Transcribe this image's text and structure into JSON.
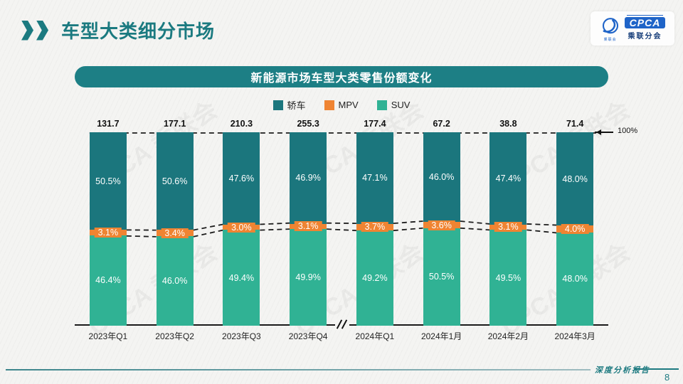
{
  "header": {
    "title": "车型大类细分市场",
    "logo": {
      "acronym": "CPCA",
      "org": "乘联分会",
      "emblem_label": "乘联会"
    }
  },
  "watermark": {
    "text": "CPCA 乘联会"
  },
  "chart_data": {
    "type": "bar",
    "stacked": true,
    "stack_order": "top-to-bottom",
    "unit": "%",
    "title": "新能源市场车型大类零售份额变化",
    "categories": [
      "2023年Q1",
      "2023年Q2",
      "2023年Q3",
      "2023年Q4",
      "2024年Q1",
      "2024年1月",
      "2024年2月",
      "2024年3月"
    ],
    "total_labels": [
      131.7,
      177.1,
      210.3,
      255.3,
      177.4,
      67.2,
      38.8,
      71.4
    ],
    "series": [
      {
        "name": "轿车",
        "color": "#1b767d",
        "values": [
          50.5,
          50.6,
          47.6,
          46.9,
          47.1,
          46.0,
          47.4,
          48.0
        ]
      },
      {
        "name": "MPV",
        "color": "#ef8432",
        "values": [
          3.1,
          3.4,
          3.0,
          3.1,
          3.7,
          3.6,
          3.1,
          4.0
        ]
      },
      {
        "name": "SUV",
        "color": "#30b294",
        "values": [
          46.4,
          46.0,
          49.4,
          49.9,
          49.2,
          50.5,
          49.5,
          48.0
        ]
      }
    ],
    "ylim": [
      0,
      100
    ],
    "ref_line_label": "100%",
    "axis_break_between": [
      "2023年Q4",
      "2024年Q1"
    ],
    "legend_position": "top-center",
    "grid": false
  },
  "footer": {
    "doc_label": "深度分析报告",
    "page_number": "8"
  }
}
